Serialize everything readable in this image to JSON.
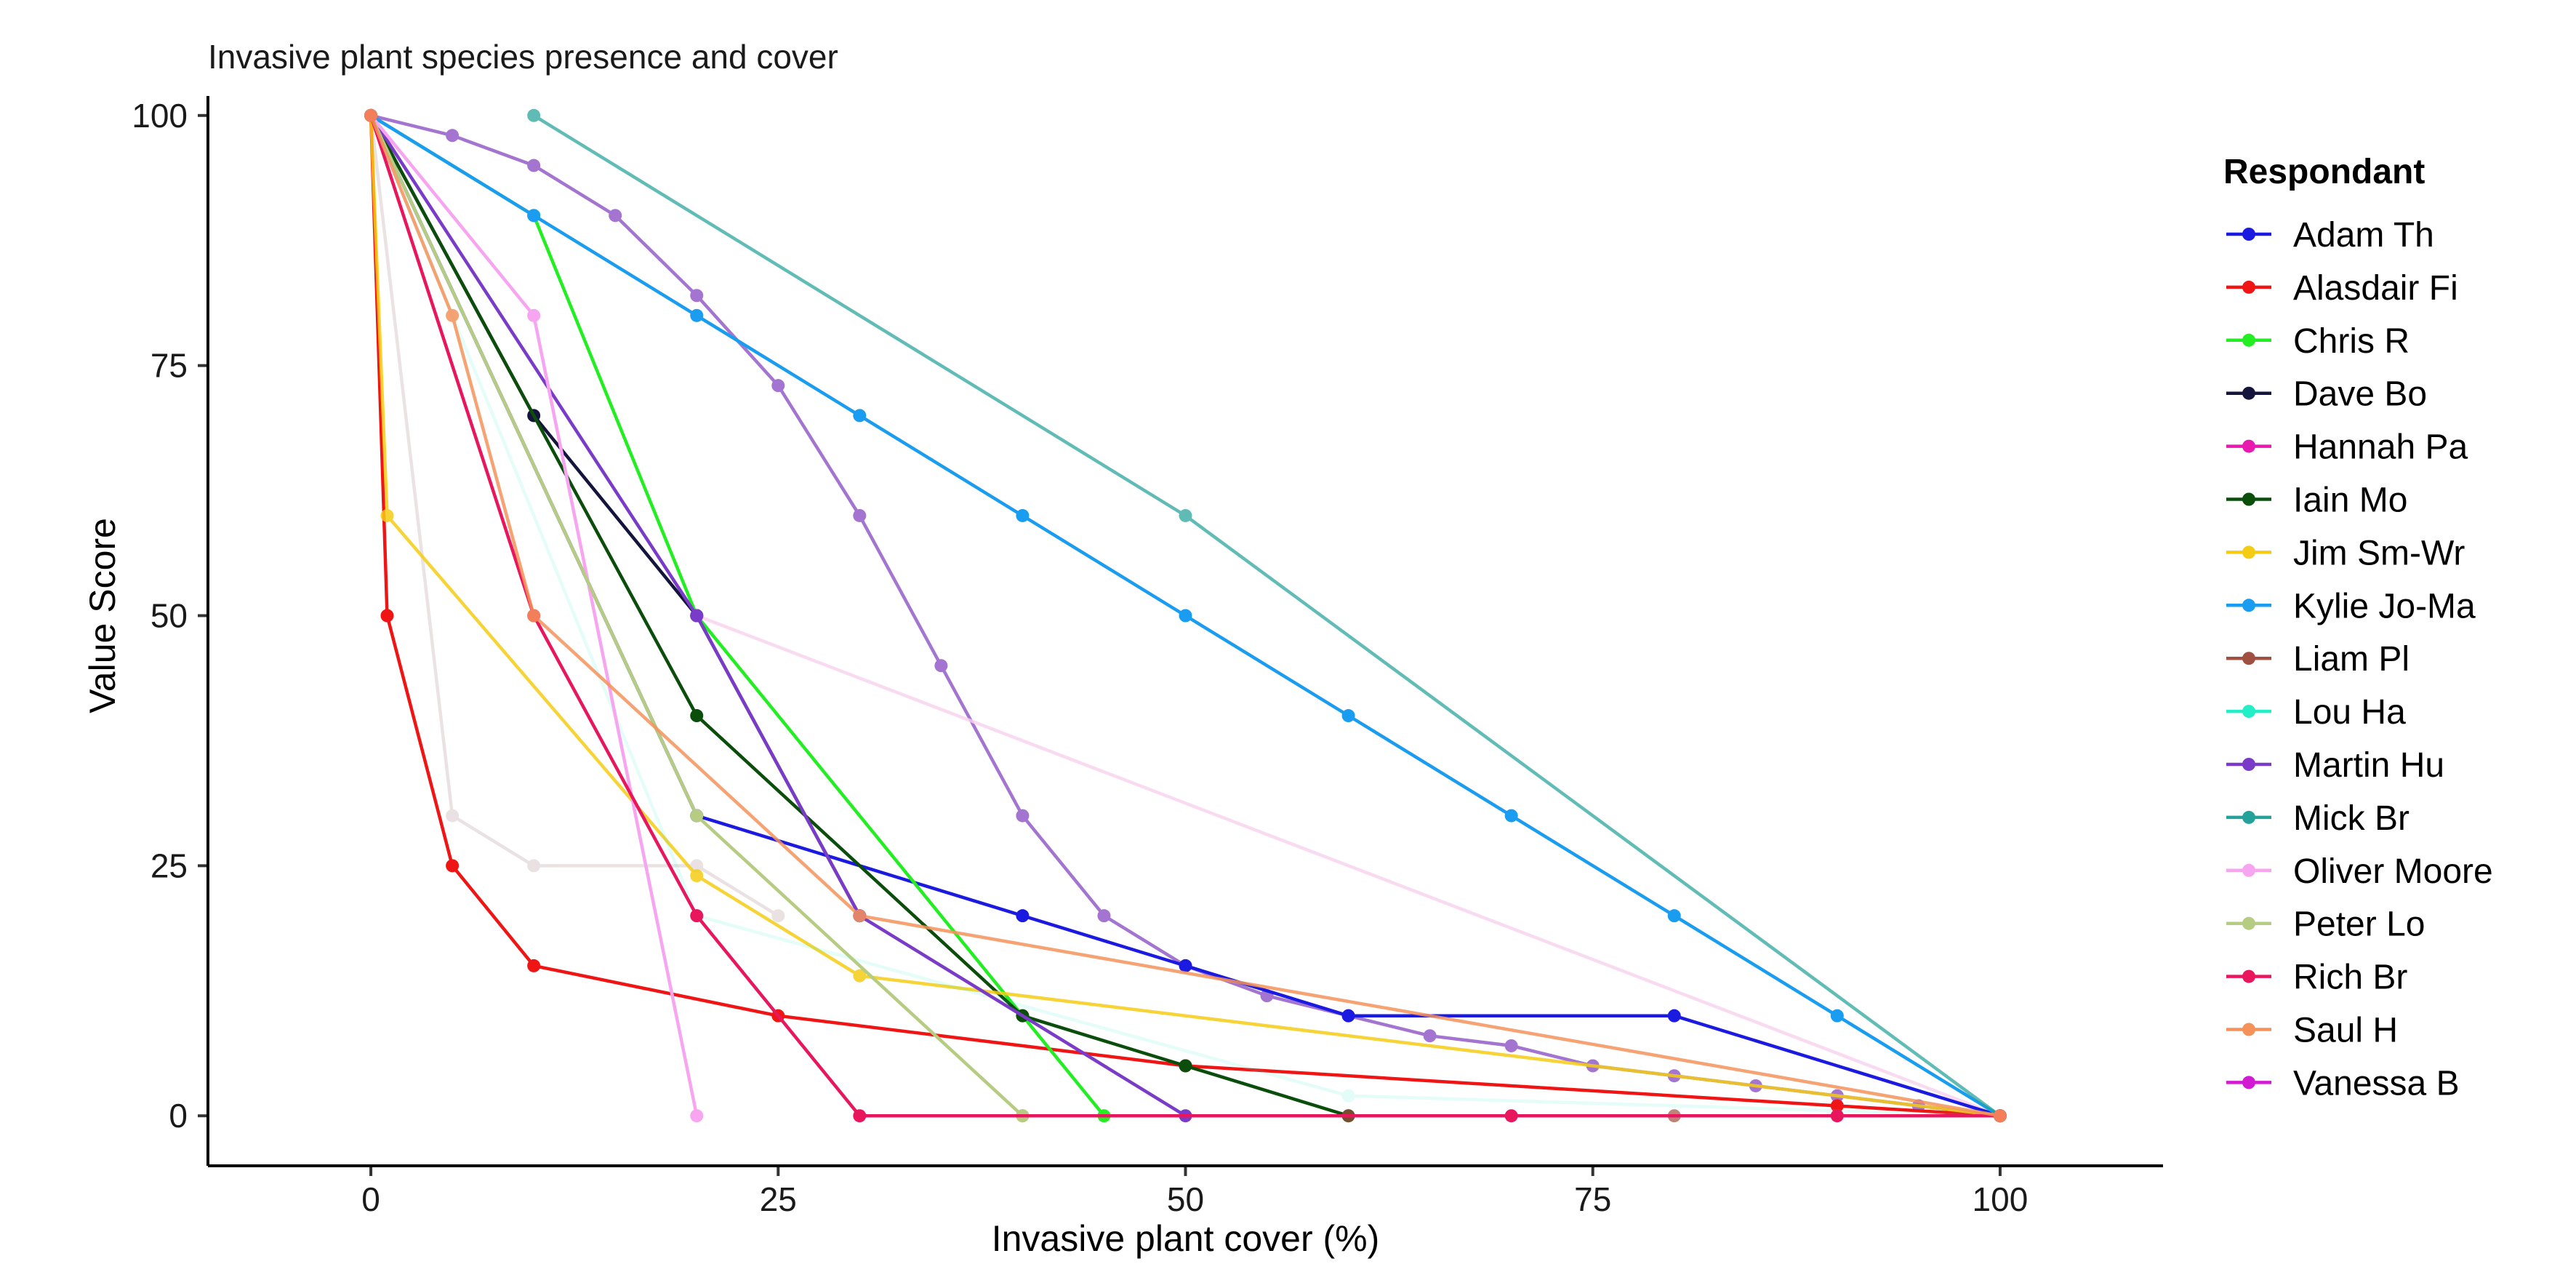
{
  "chart_data": {
    "type": "line",
    "title": "Invasive plant species presence and cover",
    "xlabel": "Invasive plant cover (%)",
    "ylabel": "Value Score",
    "xlim": [
      -10,
      110
    ],
    "ylim": [
      -5,
      105
    ],
    "xticks": [
      0,
      25,
      50,
      75,
      100
    ],
    "yticks": [
      0,
      25,
      50,
      75,
      100
    ],
    "grid": false,
    "legend_title": "Respondant",
    "legend_position": "right",
    "series": [
      {
        "name": "Adam Th",
        "color": "#1a1ae0",
        "opacity": 1.0,
        "x": [
          0,
          20,
          40,
          50,
          60,
          80,
          100
        ],
        "y": [
          100,
          30,
          20,
          15,
          10,
          10,
          0
        ]
      },
      {
        "name": "Alasdair Fi",
        "color": "#f01515",
        "opacity": 1.0,
        "x": [
          0,
          1,
          5,
          10,
          25,
          50,
          90,
          100
        ],
        "y": [
          100,
          50,
          25,
          15,
          10,
          5,
          1,
          0
        ]
      },
      {
        "name": "Chris R",
        "color": "#22ee22",
        "opacity": 1.0,
        "x": [
          0,
          10,
          20,
          40,
          45
        ],
        "y": [
          100,
          90,
          50,
          10,
          0
        ]
      },
      {
        "name": "Dave Bo",
        "color": "#14143c",
        "opacity": 1.0,
        "x": [
          0,
          10,
          20,
          30
        ],
        "y": [
          100,
          70,
          50,
          20
        ]
      },
      {
        "name": "Hannah Pa",
        "color": "#e81ab0",
        "opacity": 1.0,
        "x": [],
        "y": []
      },
      {
        "name": "Iain Mo",
        "color": "#0b4d0b",
        "opacity": 1.0,
        "x": [
          0,
          20,
          40,
          50,
          60
        ],
        "y": [
          100,
          40,
          10,
          5,
          0
        ]
      },
      {
        "name": "Jim Sm-Wr",
        "color": "#f5cc14",
        "opacity": 0.85,
        "x": [
          0,
          1,
          20,
          30,
          100
        ],
        "y": [
          100,
          60,
          24,
          14,
          0
        ]
      },
      {
        "name": "Kylie Jo-Ma",
        "color": "#1a9cf0",
        "opacity": 1.0,
        "x": [
          0,
          10,
          20,
          30,
          40,
          50,
          60,
          70,
          80,
          90,
          100
        ],
        "y": [
          100,
          90,
          80,
          70,
          60,
          50,
          40,
          30,
          20,
          10,
          0
        ]
      },
      {
        "name": "Liam Pl",
        "color": "#a05040",
        "opacity": 0.7,
        "x": [
          40,
          60,
          80,
          100
        ],
        "y": [
          0,
          0,
          0,
          0
        ]
      },
      {
        "name": "Lou Ha",
        "color": "#22eec8",
        "opacity": 0.12,
        "x": [
          0,
          20,
          60,
          100
        ],
        "y": [
          100,
          20,
          2,
          0
        ]
      },
      {
        "name": "Martin Hu",
        "color": "#7a3cc8",
        "opacity": 1.0,
        "x": [
          0,
          20,
          30,
          50
        ],
        "y": [
          100,
          50,
          20,
          0
        ]
      },
      {
        "name": "Mick Br",
        "color": "#24a29a",
        "opacity": 0.72,
        "x": [
          10,
          50,
          100
        ],
        "y": [
          100,
          60,
          0
        ]
      },
      {
        "name": "Oliver Moore",
        "color": "#f7a5f0",
        "opacity": 1.0,
        "x": [
          0,
          10,
          20
        ],
        "y": [
          100,
          80,
          0
        ]
      },
      {
        "name": "Peter Lo",
        "color": "#b5cc82",
        "opacity": 1.0,
        "x": [
          0,
          20,
          40
        ],
        "y": [
          100,
          30,
          0
        ]
      },
      {
        "name": "Rich Br",
        "color": "#e8175d",
        "opacity": 1.0,
        "x": [
          0,
          10,
          20,
          30,
          70,
          90,
          100
        ],
        "y": [
          100,
          50,
          20,
          0,
          0,
          0,
          0
        ]
      },
      {
        "name": "Saul H",
        "color": "#f5925a",
        "opacity": 0.85,
        "x": [
          0,
          5,
          10,
          30,
          100
        ],
        "y": [
          100,
          80,
          50,
          20,
          0
        ]
      },
      {
        "name": "Vanessa B",
        "color": "#d21ad2",
        "opacity": 1.0,
        "x": [],
        "y": []
      }
    ],
    "unlisted_series": [
      {
        "name": "light purple curve",
        "color": "#9a66cc",
        "opacity": 0.9,
        "x": [
          0,
          5,
          10,
          15,
          20,
          25,
          30,
          35,
          40,
          45,
          50,
          55,
          60,
          65,
          70,
          75,
          80,
          85,
          90,
          95,
          100
        ],
        "y": [
          100,
          98,
          95,
          90,
          82,
          73,
          60,
          45,
          30,
          20,
          15,
          12,
          10,
          8,
          7,
          5,
          4,
          3,
          2,
          1,
          0
        ]
      },
      {
        "name": "slate grey line",
        "color": "#76879a",
        "opacity": 1.0,
        "x": [
          0,
          20
        ],
        "y": [
          100,
          30
        ]
      },
      {
        "name": "faint grey line",
        "color": "#e6dcdc",
        "opacity": 0.8,
        "x": [
          0,
          5,
          10,
          20,
          25
        ],
        "y": [
          100,
          30,
          25,
          25,
          20
        ]
      },
      {
        "name": "faint pink line",
        "color": "#f8d2ee",
        "opacity": 0.8,
        "x": [
          20,
          100
        ],
        "y": [
          50,
          0
        ]
      }
    ]
  }
}
